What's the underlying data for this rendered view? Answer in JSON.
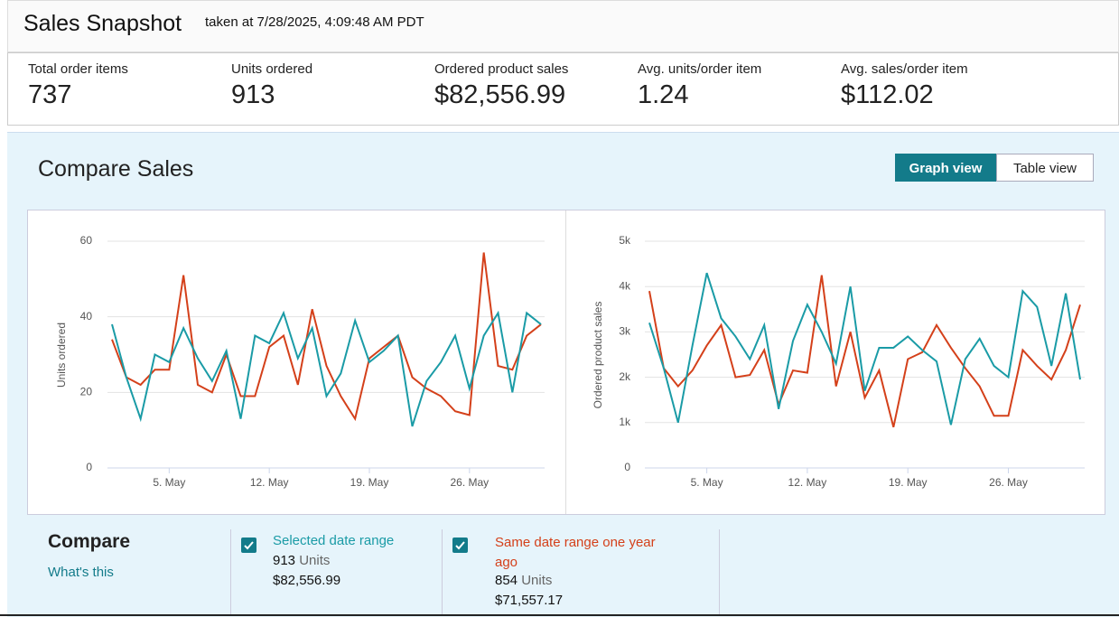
{
  "header": {
    "title": "Sales Snapshot",
    "timestamp": "taken at 7/28/2025, 4:09:48 AM PDT"
  },
  "metrics": [
    {
      "label": "Total order items",
      "value": "737"
    },
    {
      "label": "Units ordered",
      "value": "913"
    },
    {
      "label": "Ordered product sales",
      "value": "$82,556.99"
    },
    {
      "label": "Avg. units/order item",
      "value": "1.24"
    },
    {
      "label": "Avg. sales/order item",
      "value": "$112.02"
    }
  ],
  "compare_sales": {
    "title": "Compare Sales",
    "views": [
      "Graph view",
      "Table view"
    ]
  },
  "compare": {
    "title": "Compare",
    "link": "What's this",
    "ranges": [
      {
        "units": "913",
        "units_label": "Units",
        "sales": "$82,556.99"
      },
      {
        "units": "854",
        "units_label": "Units",
        "sales": "$71,557.17"
      }
    ]
  },
  "chart_data": [
    {
      "type": "line",
      "y_label": "Units ordered",
      "x": [
        1,
        2,
        3,
        4,
        5,
        6,
        7,
        8,
        9,
        10,
        11,
        12,
        13,
        14,
        15,
        16,
        17,
        18,
        19,
        20,
        21,
        22,
        23,
        24,
        25,
        26,
        27,
        28,
        29,
        30,
        31
      ],
      "xlim": [
        1,
        31
      ],
      "xticks": [
        {
          "value": 5,
          "label": "5. May"
        },
        {
          "value": 12,
          "label": "12. May"
        },
        {
          "value": 19,
          "label": "19. May"
        },
        {
          "value": 26,
          "label": "26. May"
        }
      ],
      "ylim": [
        0,
        60
      ],
      "yticks": [
        0,
        20,
        40,
        60
      ],
      "grid": true,
      "series": [
        {
          "name": "Selected date range",
          "color": "#1a9ba6",
          "values": [
            38,
            24,
            13,
            30,
            28,
            37,
            29,
            23,
            31,
            13,
            35,
            33,
            41,
            29,
            37,
            19,
            25,
            39,
            28,
            31,
            35,
            11,
            23,
            28,
            35,
            21,
            35,
            41,
            20,
            41,
            38
          ]
        },
        {
          "name": "Same date range one year ago",
          "color": "#d4401a",
          "values": [
            34,
            24,
            22,
            26,
            26,
            51,
            22,
            20,
            30,
            19,
            19,
            32,
            35,
            22,
            42,
            27,
            19,
            13,
            29,
            32,
            35,
            24,
            21,
            19,
            15,
            14,
            57,
            27,
            26,
            35,
            38
          ]
        }
      ]
    },
    {
      "type": "line",
      "y_label": "Ordered product sales",
      "x": [
        1,
        2,
        3,
        4,
        5,
        6,
        7,
        8,
        9,
        10,
        11,
        12,
        13,
        14,
        15,
        16,
        17,
        18,
        19,
        20,
        21,
        22,
        23,
        24,
        25,
        26,
        27,
        28,
        29,
        30,
        31
      ],
      "xlim": [
        1,
        31
      ],
      "xticks": [
        {
          "value": 5,
          "label": "5. May"
        },
        {
          "value": 12,
          "label": "12. May"
        },
        {
          "value": 19,
          "label": "19. May"
        },
        {
          "value": 26,
          "label": "26. May"
        }
      ],
      "ylim": [
        0,
        5000
      ],
      "yticks": [
        0,
        {
          "value": 1000,
          "label": "1k"
        },
        {
          "value": 2000,
          "label": "2k"
        },
        {
          "value": 3000,
          "label": "3k"
        },
        {
          "value": 4000,
          "label": "4k"
        },
        {
          "value": 5000,
          "label": "5k"
        }
      ],
      "grid": true,
      "series": [
        {
          "name": "Selected date range",
          "color": "#1a9ba6",
          "values": [
            3200,
            2200,
            1000,
            2700,
            4300,
            3300,
            2900,
            2400,
            3150,
            1300,
            2800,
            3600,
            3000,
            2300,
            4000,
            1700,
            2650,
            2650,
            2900,
            2600,
            2350,
            950,
            2400,
            2850,
            2250,
            2000,
            3900,
            3550,
            2250,
            3850,
            1950
          ]
        },
        {
          "name": "Same date range one year ago",
          "color": "#d4401a",
          "values": [
            3900,
            2200,
            1800,
            2150,
            2700,
            3150,
            2000,
            2050,
            2600,
            1400,
            2150,
            2100,
            4250,
            1800,
            3000,
            1550,
            2150,
            900,
            2400,
            2550,
            3150,
            2650,
            2200,
            1800,
            1150,
            1150,
            2600,
            2250,
            1950,
            2600,
            3600
          ]
        }
      ]
    }
  ]
}
